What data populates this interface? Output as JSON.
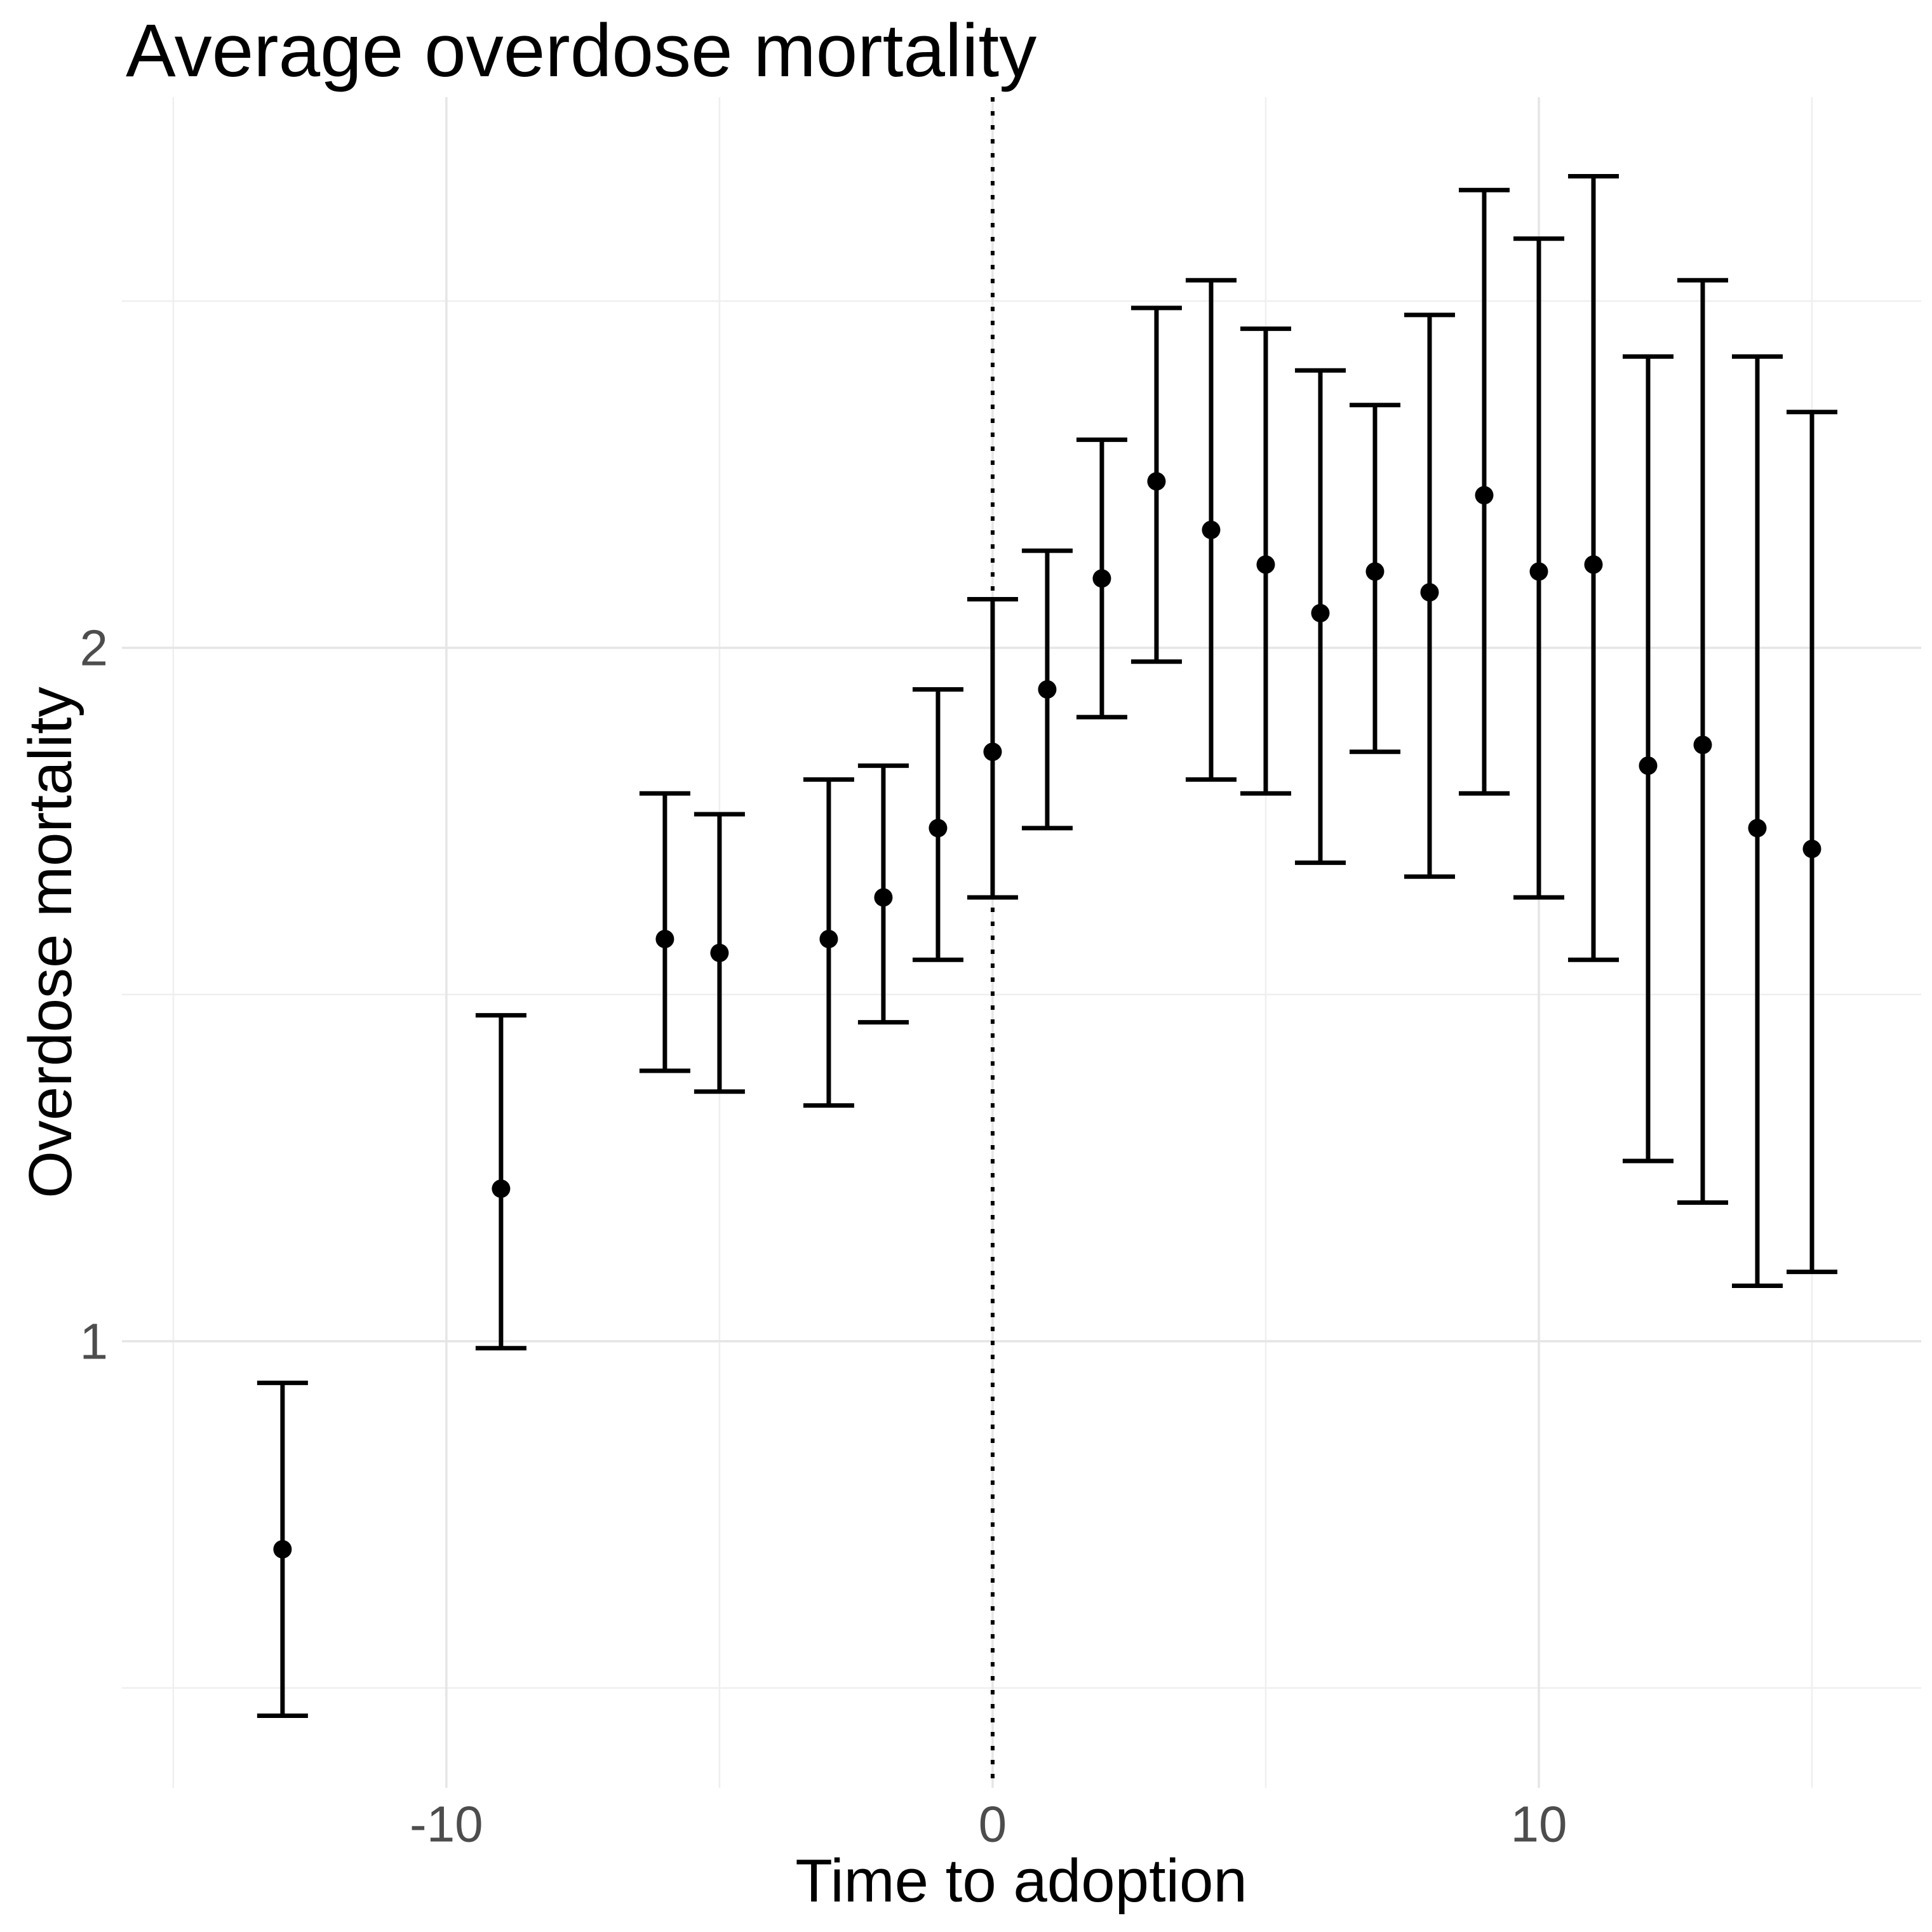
{
  "chart_data": {
    "type": "scatter-pointrange",
    "title": "Average overdose mortality",
    "xlabel": "Time to adoption",
    "ylabel": "Overdose mortality",
    "x": [
      -13,
      -9,
      -6,
      -5,
      -3,
      -2,
      -1,
      0,
      1,
      2,
      3,
      4,
      5,
      6,
      7,
      8,
      9,
      10,
      11,
      12,
      13,
      14,
      15
    ],
    "estimate": [
      0.7,
      1.22,
      1.58,
      1.56,
      1.58,
      1.64,
      1.74,
      1.85,
      1.94,
      2.1,
      2.24,
      2.17,
      2.12,
      2.05,
      2.11,
      2.08,
      2.22,
      2.11,
      2.12,
      1.83,
      1.86,
      1.74,
      1.71
    ],
    "ci_low": [
      0.46,
      0.99,
      1.39,
      1.36,
      1.34,
      1.46,
      1.55,
      1.64,
      1.74,
      1.9,
      1.98,
      1.81,
      1.79,
      1.69,
      1.85,
      1.67,
      1.79,
      1.64,
      1.55,
      1.26,
      1.2,
      1.08,
      1.1
    ],
    "ci_high": [
      0.94,
      1.47,
      1.79,
      1.76,
      1.81,
      1.83,
      1.94,
      2.07,
      2.14,
      2.3,
      2.49,
      2.53,
      2.46,
      2.4,
      2.35,
      2.48,
      2.66,
      2.59,
      2.68,
      2.42,
      2.53,
      2.42,
      2.34
    ],
    "x_ticks": [
      {
        "value": -10,
        "label": "-10"
      },
      {
        "value": 0,
        "label": "0"
      },
      {
        "value": 10,
        "label": "10"
      }
    ],
    "x_minor_ticks": [
      -15,
      -5,
      5,
      15
    ],
    "y_ticks": [
      {
        "value": 1,
        "label": "1"
      },
      {
        "value": 2,
        "label": "2"
      }
    ],
    "y_minor_ticks": [
      0.5,
      1.5,
      2.5
    ],
    "xlim": [
      -15.94,
      17.0
    ],
    "ylim": [
      0.356,
      2.794
    ],
    "reference_line_x": 0,
    "grid": true,
    "legend": "none",
    "colors": {
      "point": "#000000",
      "error_bar": "#000000",
      "grid_major": "#E5E5E5",
      "grid_minor": "#EFEFEF",
      "tick_text": "#4D4D4D",
      "title_text": "#000000",
      "reference_line": "#000000",
      "background": "#FFFFFF"
    }
  }
}
